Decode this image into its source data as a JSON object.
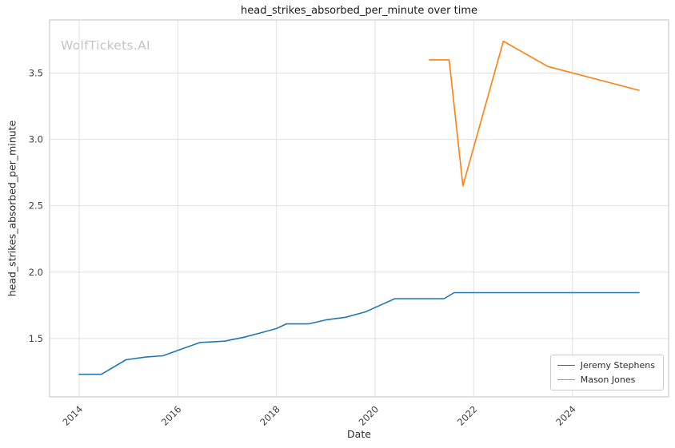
{
  "watermark": "WolfTickets.AI",
  "title": "head_strikes_absorbed_per_minute over time",
  "xlabel": "Date",
  "ylabel": "head_strikes_absorbed_per_minute",
  "chart_data": {
    "type": "line",
    "title": "head_strikes_absorbed_per_minute over time",
    "xlabel": "Date",
    "ylabel": "head_strikes_absorbed_per_minute",
    "xlim": [
      2013.4,
      2025.95
    ],
    "ylim": [
      1.06,
      3.9
    ],
    "x_ticks": [
      2014,
      2016,
      2018,
      2020,
      2022,
      2024
    ],
    "y_ticks": [
      1.5,
      2.0,
      2.5,
      3.0,
      3.5
    ],
    "grid": true,
    "legend_position": "lower right",
    "grid_color": "#e0e0e0",
    "spine_color": "#cccccc",
    "tick_text_color": "#404040",
    "series": [
      {
        "name": "Jeremy Stephens",
        "color": "#1f77b4",
        "points": [
          [
            2014.0,
            1.23
          ],
          [
            2014.45,
            1.23
          ],
          [
            2014.95,
            1.34
          ],
          [
            2015.35,
            1.36
          ],
          [
            2015.7,
            1.37
          ],
          [
            2016.0,
            1.41
          ],
          [
            2016.45,
            1.47
          ],
          [
            2016.95,
            1.48
          ],
          [
            2017.35,
            1.51
          ],
          [
            2017.75,
            1.55
          ],
          [
            2018.0,
            1.575
          ],
          [
            2018.2,
            1.61
          ],
          [
            2018.65,
            1.61
          ],
          [
            2019.0,
            1.64
          ],
          [
            2019.4,
            1.66
          ],
          [
            2019.8,
            1.7
          ],
          [
            2020.1,
            1.75
          ],
          [
            2020.4,
            1.8
          ],
          [
            2021.4,
            1.8
          ],
          [
            2021.6,
            1.845
          ],
          [
            2025.35,
            1.845
          ]
        ]
      },
      {
        "name": "Mason Jones",
        "color": "#ff7f0e",
        "points": [
          [
            2021.1,
            3.6
          ],
          [
            2021.5,
            3.6
          ],
          [
            2021.78,
            2.65
          ],
          [
            2022.6,
            3.74
          ],
          [
            2023.5,
            3.55
          ],
          [
            2025.35,
            3.37
          ]
        ]
      }
    ]
  }
}
